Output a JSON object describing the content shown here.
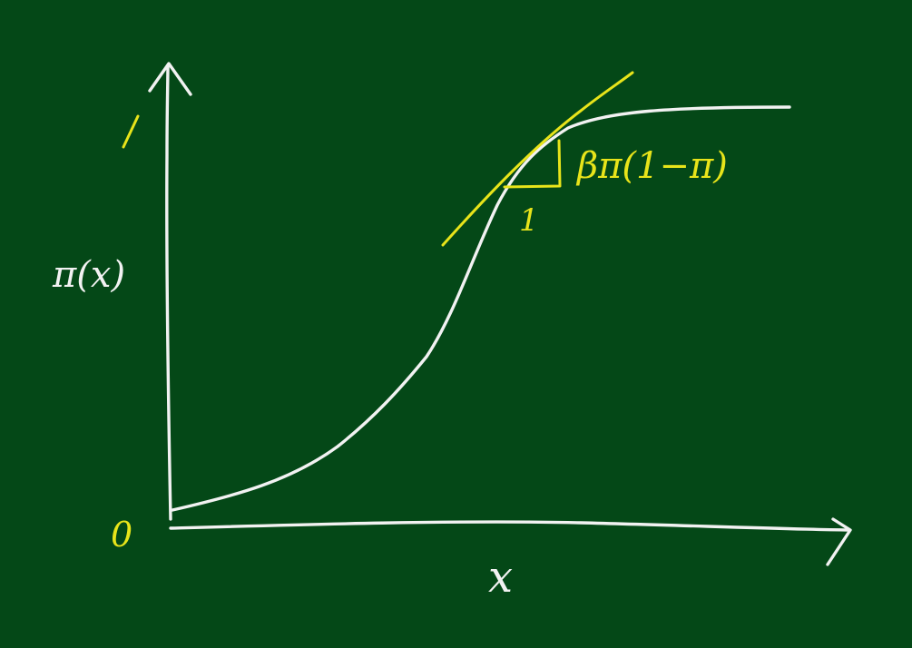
{
  "axes": {
    "y_label": "π(x)",
    "x_label": "x",
    "origin_label": "0",
    "y_max_label": "1"
  },
  "tangent": {
    "run_label": "1",
    "rise_label": "βπ(1−π)"
  },
  "colors": {
    "board": "#044817",
    "chalk_white": "#f2f2f2",
    "chalk_yellow": "#e8e41a"
  }
}
